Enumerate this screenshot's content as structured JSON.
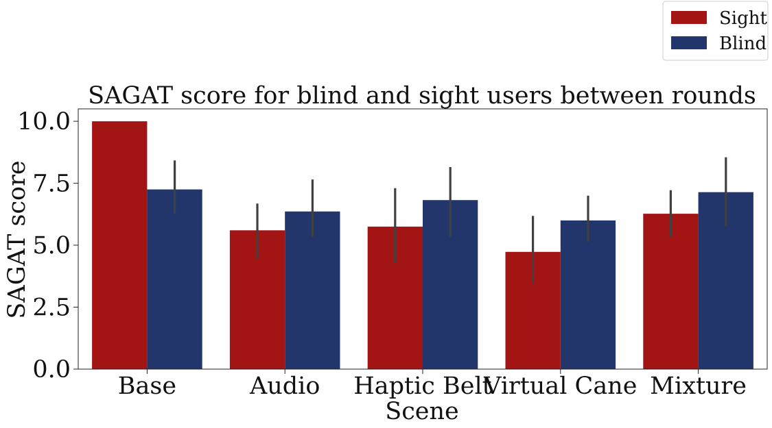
{
  "chart_data": {
    "type": "bar",
    "title": "SAGAT score for blind and sight users between rounds",
    "xlabel": "Scene",
    "ylabel": "SAGAT score",
    "categories": [
      "Base",
      "Audio",
      "Haptic Belt",
      "Virtual Cane",
      "Mixture"
    ],
    "ylim": [
      0,
      10.5
    ],
    "yticks": [
      "0.0",
      "2.5",
      "5.0",
      "7.5",
      "10.0"
    ],
    "grid": false,
    "legend_position": "top-right",
    "series": [
      {
        "name": "Sight",
        "color": "#a31515",
        "values": [
          10.0,
          5.6,
          5.75,
          4.73,
          6.27
        ],
        "error_low": [
          10.0,
          4.45,
          4.3,
          3.45,
          5.35
        ],
        "error_high": [
          10.0,
          6.68,
          7.3,
          6.18,
          7.22
        ]
      },
      {
        "name": "Blind",
        "color": "#23366b",
        "values": [
          7.25,
          6.36,
          6.82,
          6.0,
          7.14
        ],
        "error_low": [
          6.28,
          5.35,
          5.35,
          5.15,
          5.75
        ],
        "error_high": [
          8.42,
          7.65,
          8.15,
          7.0,
          8.55
        ]
      }
    ],
    "error_bar_color": "#404040"
  }
}
